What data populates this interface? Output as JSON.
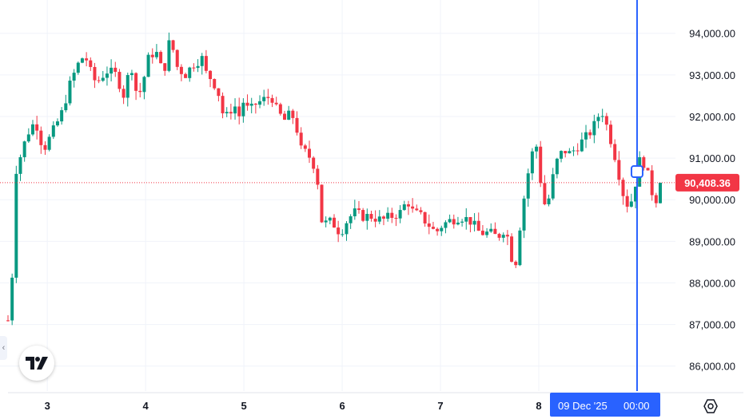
{
  "chart_data": {
    "type": "candlestick",
    "y_ticks": [
      "94,000.00",
      "93,000.00",
      "92,000.00",
      "91,000.00",
      "90,000.00",
      "89,000.00",
      "88,000.00",
      "87,000.00",
      "86,000.00"
    ],
    "y_tick_values": [
      94000,
      93000,
      92000,
      91000,
      90000,
      89000,
      88000,
      87000,
      86000
    ],
    "ylim": [
      85400,
      94800
    ],
    "x_ticks": [
      "3",
      "4",
      "5",
      "6",
      "7",
      "8"
    ],
    "x_tick_positions_day": [
      3,
      4,
      5,
      6,
      7,
      8
    ],
    "xlim_day": [
      2.6,
      9.35
    ],
    "grid": true,
    "last_price": 90408.36,
    "last_price_label": "90,408.36",
    "crosshair_day": 9.0,
    "crosshair_label_date": "09 Dec '25",
    "crosshair_label_time": "00:00",
    "colors": {
      "up": "#089981",
      "down": "#f23645",
      "crosshair": "#2962ff",
      "grid": "#f0f3fa"
    },
    "anchors": [
      {
        "d": 2.6,
        "p": 87100
      },
      {
        "d": 2.65,
        "p": 88400
      },
      {
        "d": 2.68,
        "p": 90700
      },
      {
        "d": 2.72,
        "p": 91000
      },
      {
        "d": 2.8,
        "p": 91600
      },
      {
        "d": 2.88,
        "p": 91900
      },
      {
        "d": 2.96,
        "p": 91200
      },
      {
        "d": 3.05,
        "p": 91600
      },
      {
        "d": 3.15,
        "p": 92100
      },
      {
        "d": 3.22,
        "p": 92700
      },
      {
        "d": 3.3,
        "p": 93200
      },
      {
        "d": 3.38,
        "p": 93500
      },
      {
        "d": 3.45,
        "p": 93000
      },
      {
        "d": 3.5,
        "p": 92800
      },
      {
        "d": 3.6,
        "p": 93100
      },
      {
        "d": 3.7,
        "p": 93000
      },
      {
        "d": 3.78,
        "p": 92500
      },
      {
        "d": 3.85,
        "p": 93300
      },
      {
        "d": 3.92,
        "p": 92400
      },
      {
        "d": 3.98,
        "p": 92900
      },
      {
        "d": 4.03,
        "p": 93400
      },
      {
        "d": 4.1,
        "p": 93600
      },
      {
        "d": 4.18,
        "p": 93000
      },
      {
        "d": 4.25,
        "p": 93900
      },
      {
        "d": 4.32,
        "p": 93200
      },
      {
        "d": 4.4,
        "p": 93000
      },
      {
        "d": 4.5,
        "p": 93300
      },
      {
        "d": 4.58,
        "p": 93400
      },
      {
        "d": 4.62,
        "p": 93000
      },
      {
        "d": 4.68,
        "p": 92900
      },
      {
        "d": 4.75,
        "p": 92500
      },
      {
        "d": 4.8,
        "p": 91900
      },
      {
        "d": 4.85,
        "p": 92100
      },
      {
        "d": 4.9,
        "p": 92300
      },
      {
        "d": 4.95,
        "p": 92000
      },
      {
        "d": 5.0,
        "p": 92400
      },
      {
        "d": 5.05,
        "p": 92100
      },
      {
        "d": 5.12,
        "p": 92300
      },
      {
        "d": 5.2,
        "p": 92400
      },
      {
        "d": 5.28,
        "p": 92500
      },
      {
        "d": 5.34,
        "p": 92100
      },
      {
        "d": 5.42,
        "p": 91900
      },
      {
        "d": 5.48,
        "p": 92100
      },
      {
        "d": 5.53,
        "p": 91800
      },
      {
        "d": 5.58,
        "p": 91200
      },
      {
        "d": 5.65,
        "p": 91100
      },
      {
        "d": 5.72,
        "p": 90800
      },
      {
        "d": 5.76,
        "p": 90300
      },
      {
        "d": 5.8,
        "p": 89300
      },
      {
        "d": 5.85,
        "p": 89500
      },
      {
        "d": 5.92,
        "p": 89400
      },
      {
        "d": 5.98,
        "p": 89200
      },
      {
        "d": 6.05,
        "p": 89500
      },
      {
        "d": 6.12,
        "p": 89700
      },
      {
        "d": 6.2,
        "p": 89600
      },
      {
        "d": 6.3,
        "p": 89600
      },
      {
        "d": 6.4,
        "p": 89500
      },
      {
        "d": 6.5,
        "p": 89600
      },
      {
        "d": 6.6,
        "p": 89700
      },
      {
        "d": 6.66,
        "p": 90000
      },
      {
        "d": 6.72,
        "p": 89700
      },
      {
        "d": 6.8,
        "p": 89600
      },
      {
        "d": 6.88,
        "p": 89400
      },
      {
        "d": 6.95,
        "p": 89200
      },
      {
        "d": 7.02,
        "p": 89400
      },
      {
        "d": 7.1,
        "p": 89500
      },
      {
        "d": 7.2,
        "p": 89600
      },
      {
        "d": 7.3,
        "p": 89500
      },
      {
        "d": 7.4,
        "p": 89200
      },
      {
        "d": 7.5,
        "p": 89200
      },
      {
        "d": 7.58,
        "p": 89100
      },
      {
        "d": 7.65,
        "p": 89300
      },
      {
        "d": 7.7,
        "p": 89000
      },
      {
        "d": 7.75,
        "p": 88200
      },
      {
        "d": 7.82,
        "p": 89600
      },
      {
        "d": 7.88,
        "p": 90500
      },
      {
        "d": 7.93,
        "p": 91100
      },
      {
        "d": 7.98,
        "p": 91300
      },
      {
        "d": 8.03,
        "p": 90200
      },
      {
        "d": 8.08,
        "p": 89700
      },
      {
        "d": 8.12,
        "p": 90300
      },
      {
        "d": 8.18,
        "p": 90900
      },
      {
        "d": 8.25,
        "p": 91200
      },
      {
        "d": 8.32,
        "p": 91100
      },
      {
        "d": 8.4,
        "p": 91300
      },
      {
        "d": 8.48,
        "p": 91500
      },
      {
        "d": 8.55,
        "p": 91700
      },
      {
        "d": 8.6,
        "p": 92000
      },
      {
        "d": 8.65,
        "p": 92100
      },
      {
        "d": 8.7,
        "p": 91700
      },
      {
        "d": 8.75,
        "p": 91300
      },
      {
        "d": 8.8,
        "p": 90800
      },
      {
        "d": 8.85,
        "p": 90200
      },
      {
        "d": 8.9,
        "p": 89900
      },
      {
        "d": 8.95,
        "p": 90000
      },
      {
        "d": 9.0,
        "p": 90600
      },
      {
        "d": 9.04,
        "p": 91100
      },
      {
        "d": 9.08,
        "p": 90800
      },
      {
        "d": 9.12,
        "p": 90500
      },
      {
        "d": 9.16,
        "p": 90100
      },
      {
        "d": 9.2,
        "p": 90000
      },
      {
        "d": 9.24,
        "p": 90408
      }
    ]
  }
}
